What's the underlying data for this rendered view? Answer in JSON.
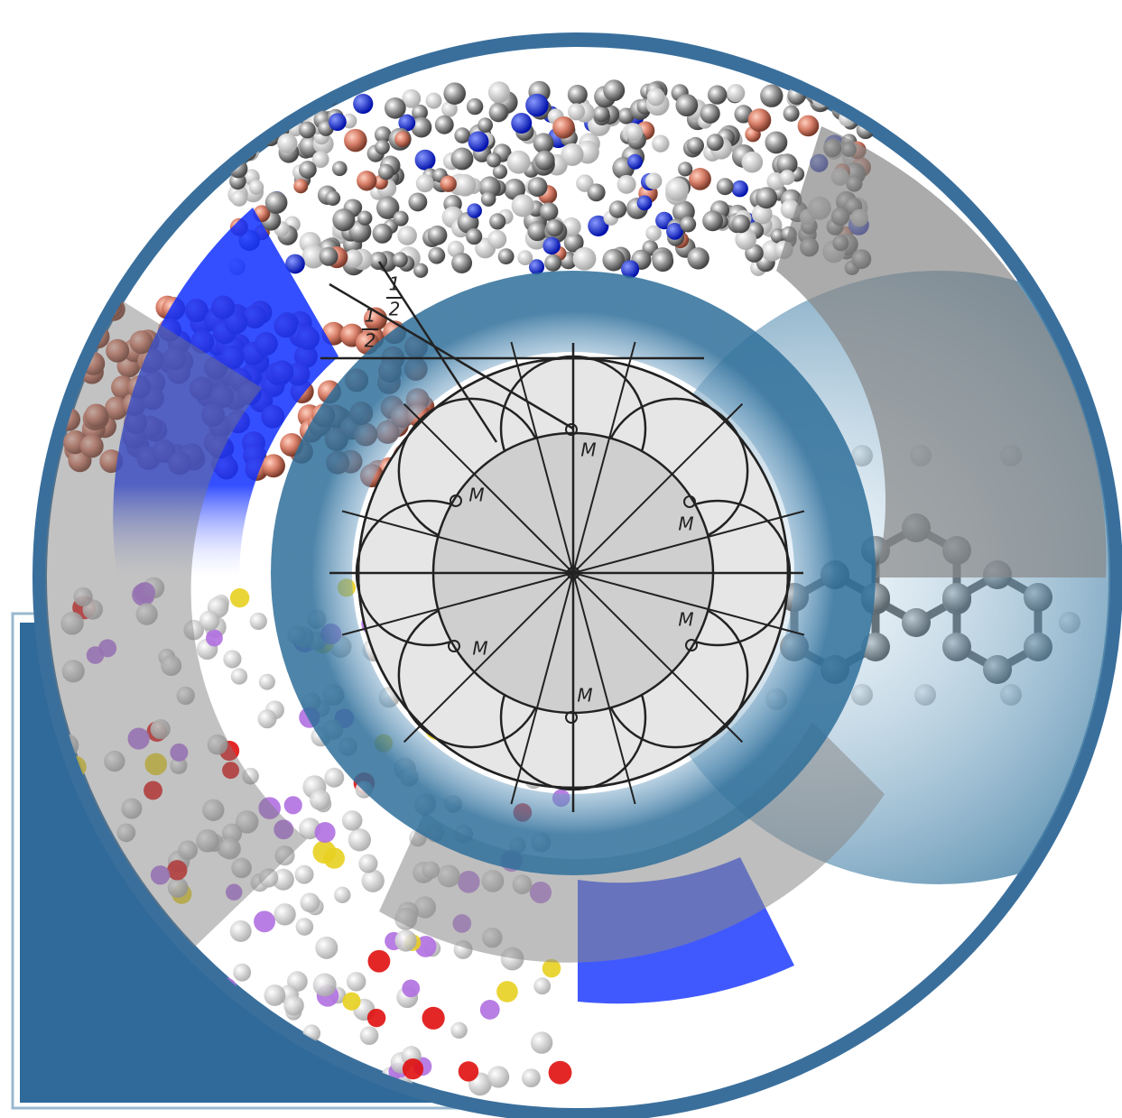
{
  "drawing": {
    "fractions": [
      {
        "numerator": "1",
        "denominator": "2"
      },
      {
        "numerator": "1",
        "denominator": "2"
      }
    ],
    "labels": [
      "M",
      "M",
      "M",
      "M",
      "M",
      "M"
    ]
  }
}
